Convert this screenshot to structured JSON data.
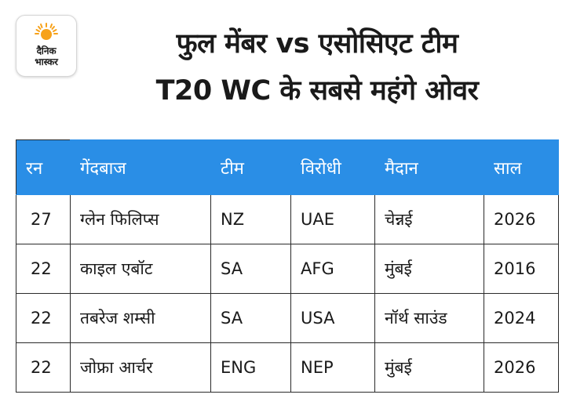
{
  "logo": {
    "brand_line1": "दैनिक",
    "brand_line2": "भास्कर",
    "accent": "#f7a21b"
  },
  "title": {
    "line1": "फुल मेंबर vs एसोसिएट टीम",
    "line2": "T20 WC के सबसे महंगे ओवर"
  },
  "table": {
    "header_bg": "#2a8ee6",
    "columns": [
      "रन",
      "गेंदबाज",
      "टीम",
      "विरोधी",
      "मैदान",
      "साल"
    ],
    "rows": [
      [
        "27",
        "ग्लेन फिलिप्स",
        "NZ",
        "UAE",
        "चेन्नई",
        "2026"
      ],
      [
        "22",
        "काइल एबॉट",
        "SA",
        "AFG",
        "मुंबई",
        "2016"
      ],
      [
        "22",
        "तबरेज शम्सी",
        "SA",
        "USA",
        "नॉर्थ साउंड",
        "2024"
      ],
      [
        "22",
        "जोफ्रा आर्चर",
        "ENG",
        "NEP",
        "मुंबई",
        "2026"
      ]
    ]
  }
}
